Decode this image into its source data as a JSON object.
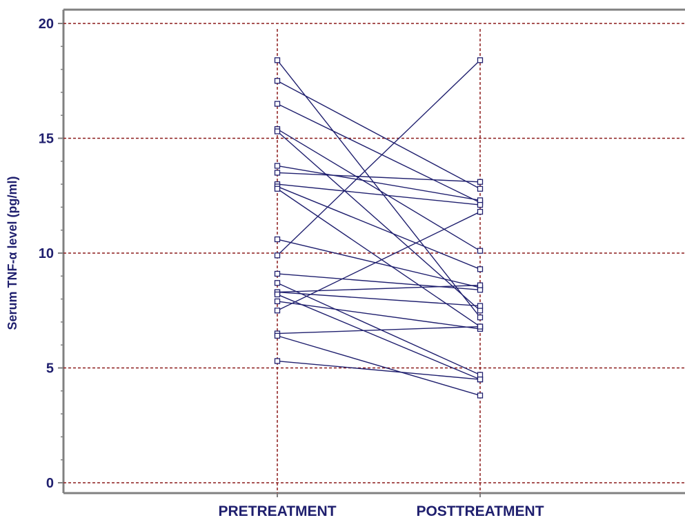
{
  "chart_data": {
    "type": "line",
    "title": "",
    "xlabel": "",
    "ylabel": "Serum TNF-α level (pg/ml)",
    "categories": [
      "PRETREATMENT",
      "POSTTREATMENT"
    ],
    "ylim": [
      0,
      20
    ],
    "yticks": [
      "0",
      "5",
      "10",
      "15",
      "20"
    ],
    "grid": true,
    "legend": "none",
    "colors": {
      "series": "#1f1f6e",
      "grid": "#8b1a1a",
      "frame": "#808080",
      "text": "#1f1f6e"
    },
    "series": [
      {
        "values": [
          18.4,
          7.2
        ]
      },
      {
        "values": [
          17.5,
          12.8
        ]
      },
      {
        "values": [
          16.5,
          12.2
        ]
      },
      {
        "values": [
          15.4,
          10.1
        ]
      },
      {
        "values": [
          15.3,
          7.5
        ]
      },
      {
        "values": [
          13.8,
          12.3
        ]
      },
      {
        "values": [
          13.5,
          13.1
        ]
      },
      {
        "values": [
          13.0,
          12.1
        ]
      },
      {
        "values": [
          12.9,
          9.3
        ]
      },
      {
        "values": [
          12.8,
          6.8
        ]
      },
      {
        "values": [
          10.6,
          8.5
        ]
      },
      {
        "values": [
          9.9,
          18.4
        ]
      },
      {
        "values": [
          9.1,
          8.4
        ]
      },
      {
        "values": [
          8.7,
          4.7
        ]
      },
      {
        "values": [
          8.3,
          8.6
        ]
      },
      {
        "values": [
          8.3,
          7.7
        ]
      },
      {
        "values": [
          8.2,
          4.5
        ]
      },
      {
        "values": [
          7.9,
          6.7
        ]
      },
      {
        "values": [
          7.5,
          11.8
        ]
      },
      {
        "values": [
          6.5,
          6.8
        ]
      },
      {
        "values": [
          6.4,
          3.8
        ]
      },
      {
        "values": [
          5.3,
          4.5
        ]
      }
    ]
  }
}
